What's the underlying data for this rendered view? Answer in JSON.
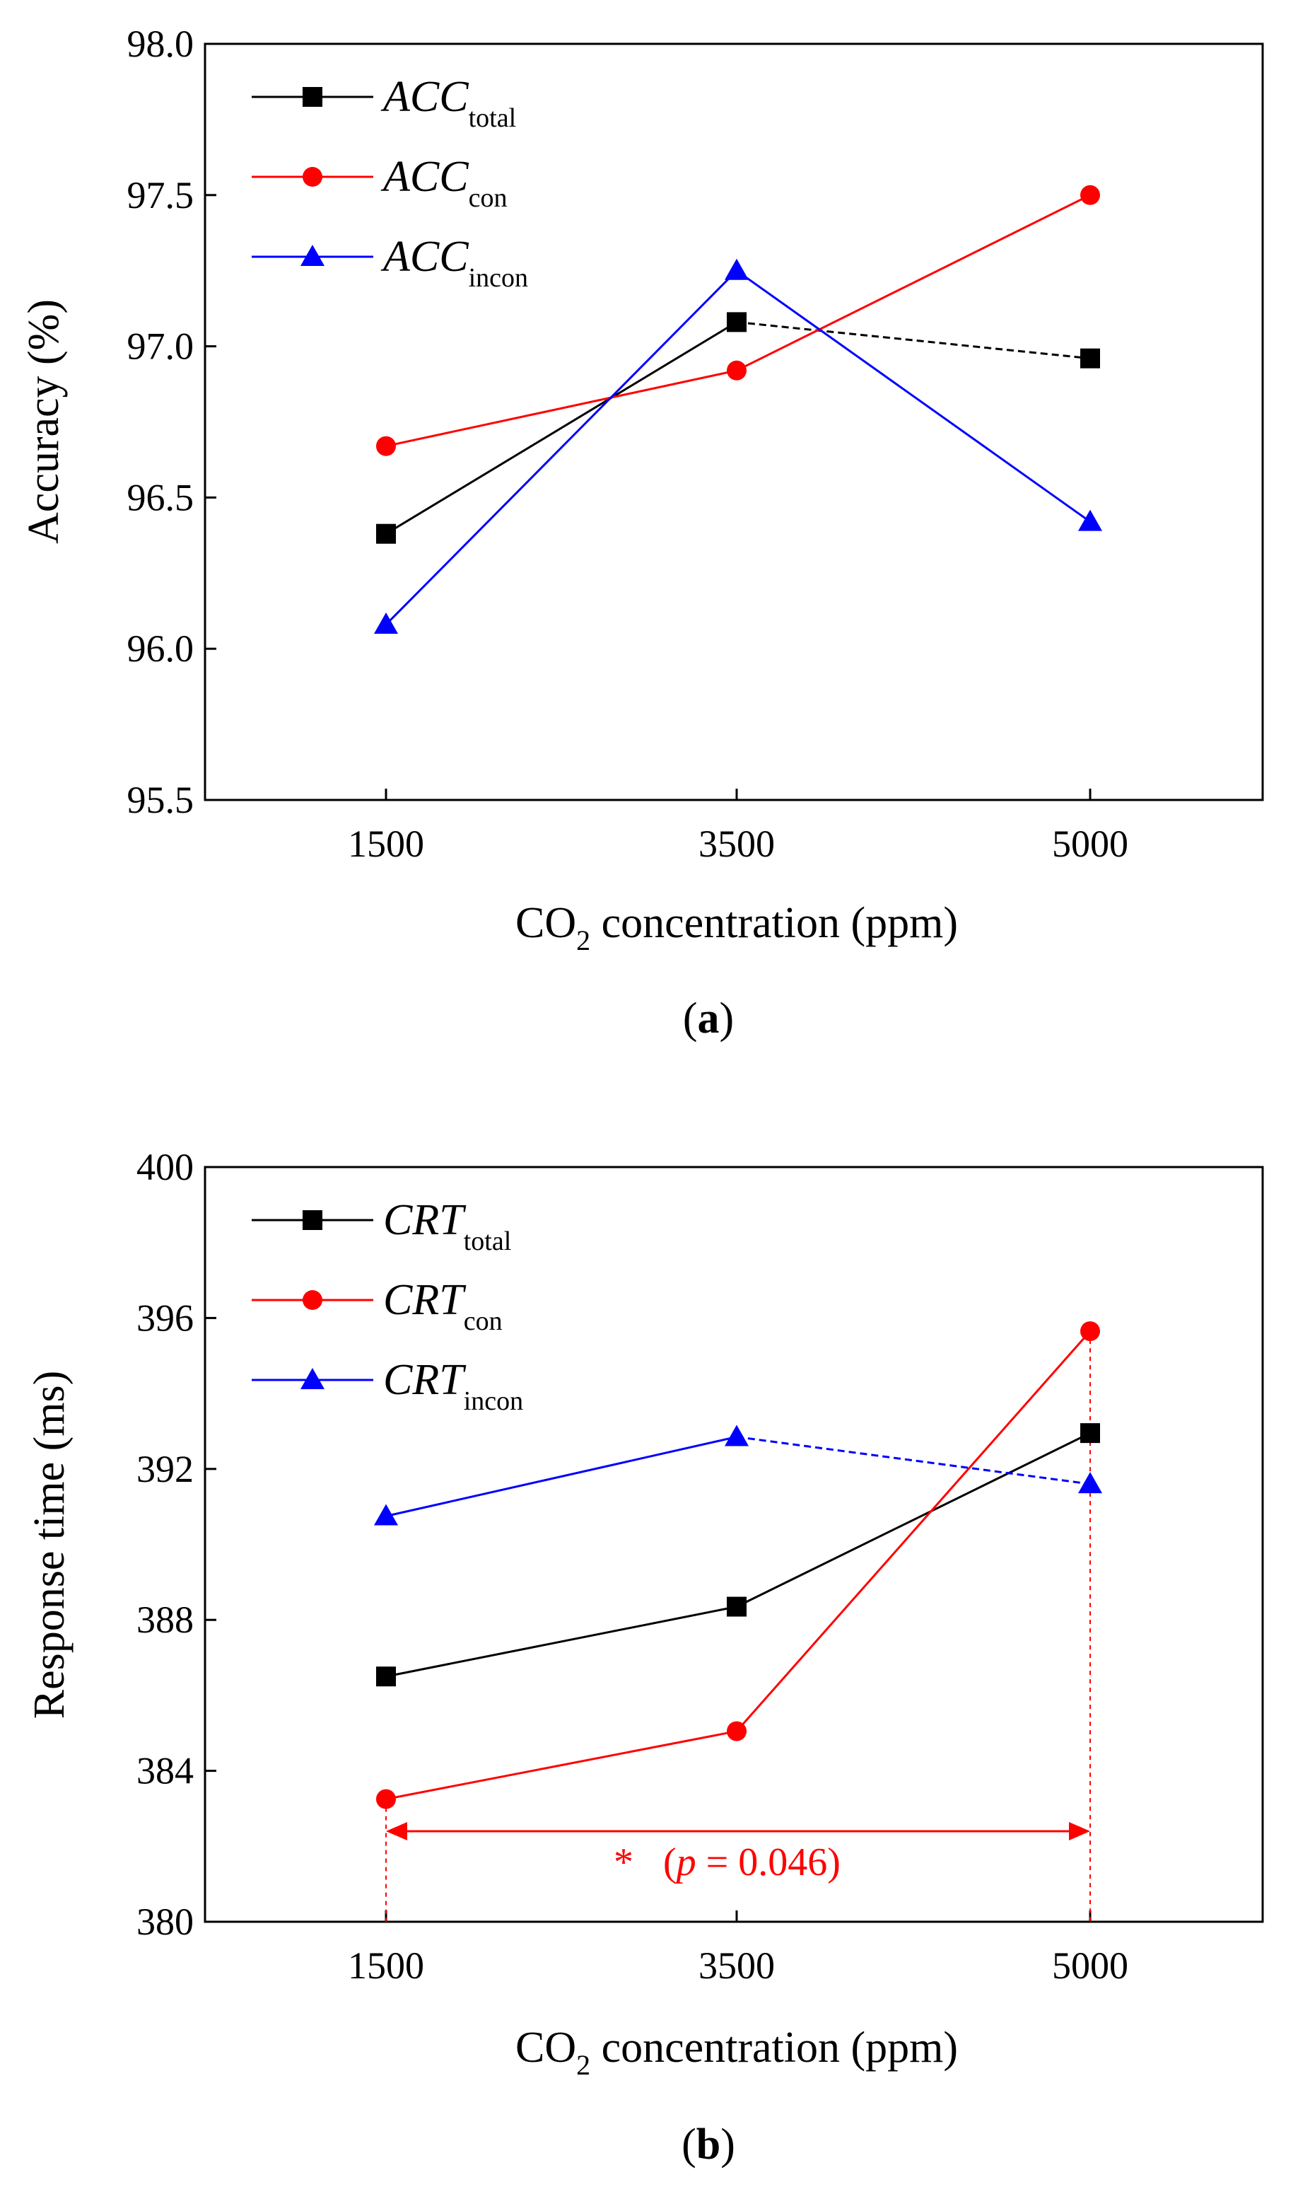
{
  "chart_data": [
    {
      "type": "line",
      "panel_label": "a",
      "ylabel": "Accuracy (%)",
      "xlabel_main": "CO",
      "xlabel_sub": "2",
      "xlabel_rest": " concentration (ppm)",
      "categories": [
        "1500",
        "3500",
        "5000"
      ],
      "y_ticks": [
        "95.5",
        "96.0",
        "96.5",
        "97.0",
        "97.5",
        "98.0"
      ],
      "ylim": [
        95.5,
        98.0
      ],
      "series": [
        {
          "name": "ACC",
          "sub": "total",
          "color": "#000000",
          "marker": "square",
          "dash_last": true,
          "values": [
            96.38,
            97.08,
            96.96
          ]
        },
        {
          "name": "ACC",
          "sub": "con",
          "color": "#ff0000",
          "marker": "circle",
          "dash_last": false,
          "values": [
            96.67,
            96.92,
            97.5
          ]
        },
        {
          "name": "ACC",
          "sub": "incon",
          "color": "#0000ff",
          "marker": "triangle",
          "dash_last": false,
          "values": [
            96.08,
            97.25,
            96.42
          ]
        }
      ]
    },
    {
      "type": "line",
      "panel_label": "b",
      "ylabel": "Response time (ms)",
      "xlabel_main": "CO",
      "xlabel_sub": "2",
      "xlabel_rest": " concentration (ppm)",
      "categories": [
        "1500",
        "3500",
        "5000"
      ],
      "y_ticks": [
        "380",
        "384",
        "388",
        "392",
        "396",
        "400"
      ],
      "ylim": [
        380,
        400
      ],
      "series": [
        {
          "name": "CRT",
          "sub": "total",
          "color": "#000000",
          "marker": "square",
          "dash_last": false,
          "values": [
            386.5,
            388.35,
            392.95
          ]
        },
        {
          "name": "CRT",
          "sub": "con",
          "color": "#ff0000",
          "marker": "circle",
          "dash_last": false,
          "values": [
            383.25,
            385.05,
            395.65
          ]
        },
        {
          "name": "CRT",
          "sub": "incon",
          "color": "#0000ff",
          "marker": "triangle",
          "dash_last": true,
          "values": [
            390.75,
            392.85,
            391.6
          ]
        }
      ],
      "annotation": {
        "star": "*",
        "p_open": "(",
        "p_italic": "p",
        "p_rest": " = 0.046)",
        "color": "#ff0000",
        "y_value": 382.4,
        "from_category": "1500",
        "to_category": "5000"
      }
    }
  ]
}
